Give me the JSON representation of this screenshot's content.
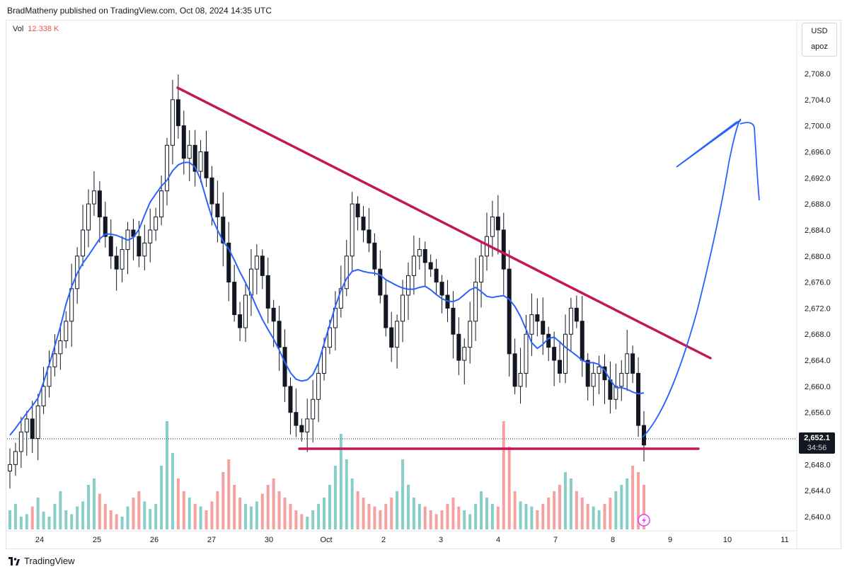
{
  "header": {
    "text": "BradMatheny published on TradingView.com, Oct 08, 2024 14:35 UTC"
  },
  "volume_legend": {
    "label": "Vol",
    "value": "12.338 K"
  },
  "scale_box": {
    "currency": "USD",
    "mode": "apoz"
  },
  "last_price": {
    "price": "2,652.1",
    "countdown": "34:56"
  },
  "footer": {
    "brand": "TradingView"
  },
  "colors": {
    "up": "#26a69a",
    "down": "#ef5350",
    "candle": "#131722",
    "trendline": "#c2185b",
    "forecast": "#2962ff"
  },
  "chart_data": {
    "type": "candlestick",
    "symbol_note": "",
    "x_tick_labels": [
      "24",
      "25",
      "26",
      "27",
      "30",
      "Oct",
      "2",
      "3",
      "4",
      "7",
      "8",
      "9",
      "10",
      "11"
    ],
    "y_tick_labels": [
      "2,708.0",
      "2,704.0",
      "2,700.0",
      "2,696.0",
      "2,692.0",
      "2,688.0",
      "2,684.0",
      "2,680.0",
      "2,676.0",
      "2,672.0",
      "2,668.0",
      "2,664.0",
      "2,660.0",
      "2,656.0",
      "2,648.0",
      "2,644.0",
      "2,640.0"
    ],
    "ylim": [
      2638.0,
      2711.0
    ],
    "last_price": 2652.1,
    "close_series_approx": [
      2648,
      2650,
      2653,
      2655,
      2652,
      2657,
      2660,
      2663,
      2665,
      2667,
      2670,
      2675,
      2680,
      2684,
      2688,
      2690,
      2686,
      2683,
      2680,
      2678,
      2681,
      2684,
      2683,
      2680,
      2682,
      2684,
      2686,
      2690,
      2697,
      2704,
      2700,
      2695,
      2697,
      2693,
      2696,
      2692,
      2688,
      2686,
      2682,
      2676,
      2671,
      2669,
      2674,
      2678,
      2680,
      2677,
      2672,
      2670,
      2666,
      2660,
      2656,
      2654,
      2653,
      2655,
      2658,
      2662,
      2666,
      2669,
      2672,
      2675,
      2680,
      2688,
      2686,
      2684,
      2682,
      2678,
      2674,
      2669,
      2666,
      2670,
      2674,
      2677,
      2680,
      2681,
      2679,
      2678,
      2676,
      2674,
      2672,
      2668,
      2664,
      2666,
      2670,
      2676,
      2680,
      2683,
      2686,
      2684,
      2678,
      2665,
      2660,
      2662,
      2668,
      2671,
      2670,
      2668,
      2666,
      2664,
      2662,
      2668,
      2672,
      2670,
      2664,
      2660,
      2662,
      2663,
      2661,
      2658,
      2660,
      2662,
      2665,
      2662,
      2654,
      2651
    ],
    "volume_relative_approx": [
      0.15,
      0.2,
      0.1,
      0.12,
      0.18,
      0.25,
      0.14,
      0.1,
      0.2,
      0.3,
      0.15,
      0.12,
      0.18,
      0.22,
      0.35,
      0.4,
      0.28,
      0.2,
      0.15,
      0.12,
      0.1,
      0.18,
      0.25,
      0.3,
      0.22,
      0.16,
      0.2,
      0.5,
      0.85,
      0.6,
      0.4,
      0.3,
      0.25,
      0.2,
      0.18,
      0.15,
      0.22,
      0.3,
      0.45,
      0.55,
      0.35,
      0.25,
      0.2,
      0.18,
      0.22,
      0.28,
      0.35,
      0.4,
      0.3,
      0.25,
      0.2,
      0.15,
      0.12,
      0.1,
      0.15,
      0.2,
      0.25,
      0.35,
      0.5,
      0.75,
      0.55,
      0.4,
      0.3,
      0.25,
      0.2,
      0.18,
      0.15,
      0.2,
      0.25,
      0.3,
      0.55,
      0.35,
      0.25,
      0.2,
      0.18,
      0.15,
      0.12,
      0.15,
      0.2,
      0.25,
      0.18,
      0.15,
      0.12,
      0.2,
      0.3,
      0.25,
      0.2,
      0.18,
      0.85,
      0.65,
      0.3,
      0.22,
      0.2,
      0.18,
      0.15,
      0.2,
      0.25,
      0.3,
      0.35,
      0.45,
      0.4,
      0.3,
      0.25,
      0.2,
      0.18,
      0.15,
      0.2,
      0.25,
      0.3,
      0.35,
      0.4,
      0.5,
      0.45,
      0.35
    ],
    "annotations": {
      "descending_trendline": {
        "from": [
          "26",
          2706.0
        ],
        "to": [
          "9 (after)",
          2664.5
        ]
      },
      "support_line": {
        "from": [
          "30 (late)",
          2651.0
        ],
        "to": [
          "9 (after)",
          2651.0
        ]
      },
      "forecast_path_note": ""
    }
  }
}
